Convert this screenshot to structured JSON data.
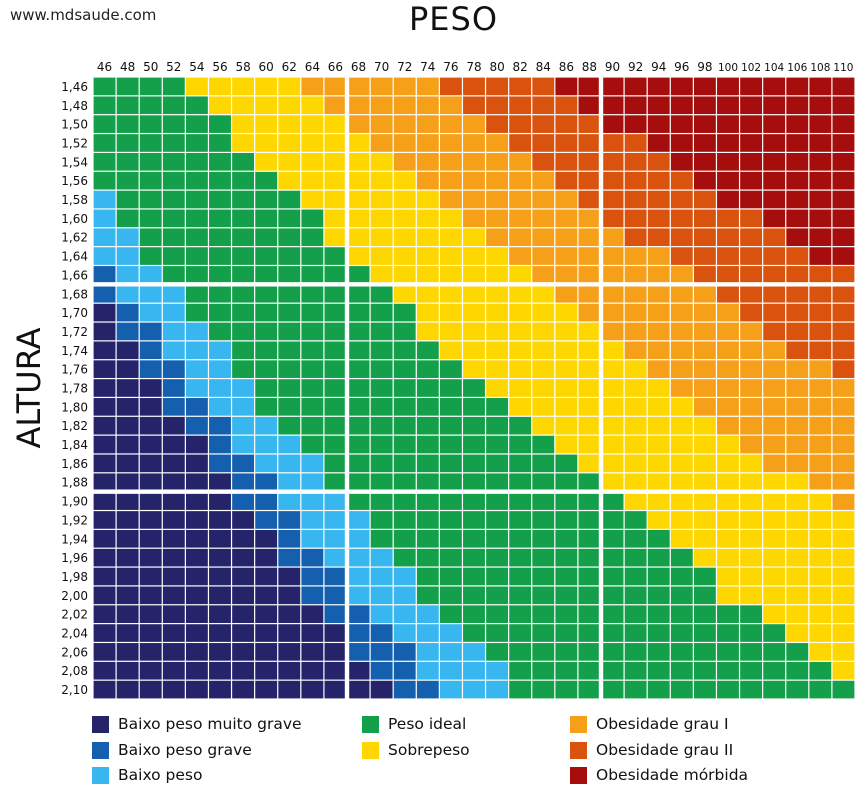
{
  "website": "www.mdsaude.com",
  "chart_data": {
    "type": "heatmap",
    "title": "PESO",
    "xlabel": "PESO",
    "ylabel": "ALTURA",
    "x": [
      46,
      48,
      50,
      52,
      54,
      56,
      58,
      60,
      62,
      64,
      66,
      68,
      70,
      72,
      74,
      76,
      78,
      80,
      82,
      84,
      86,
      88,
      90,
      92,
      94,
      96,
      98,
      100,
      102,
      104,
      106,
      108,
      110
    ],
    "y": [
      "1,46",
      "1,48",
      "1,50",
      "1,52",
      "1,54",
      "1,56",
      "1,58",
      "1,60",
      "1,62",
      "1,64",
      "1,66",
      "1,68",
      "1,70",
      "1,72",
      "1,74",
      "1,76",
      "1,78",
      "1,80",
      "1,82",
      "1,84",
      "1,86",
      "1,88",
      "1,90",
      "1,92",
      "1,94",
      "1,96",
      "1,98",
      "2,00",
      "2,02",
      "2,04",
      "2,06",
      "2,08",
      "2,10"
    ],
    "cell_value": "IMC (peso / altura²), classificado pela cor",
    "categories": [
      {
        "name": "Baixo peso muito grave",
        "color": "#25246b",
        "max": 16
      },
      {
        "name": "Baixo peso grave",
        "color": "#1460ae",
        "max": 17
      },
      {
        "name": "Baixo peso",
        "color": "#37b6f0",
        "max": 18.5
      },
      {
        "name": "Peso ideal",
        "color": "#14a04a",
        "max": 25
      },
      {
        "name": "Sobrepeso",
        "color": "#ffd700",
        "max": 30
      },
      {
        "name": "Obesidade grau I",
        "color": "#f6a01a",
        "max": 35
      },
      {
        "name": "Obesidade grau II",
        "color": "#d9530f",
        "max": 40
      },
      {
        "name": "Obesidade mórbida",
        "color": "#a60d0d",
        "max": 1000
      }
    ],
    "legend": "bottom",
    "grid": true
  }
}
